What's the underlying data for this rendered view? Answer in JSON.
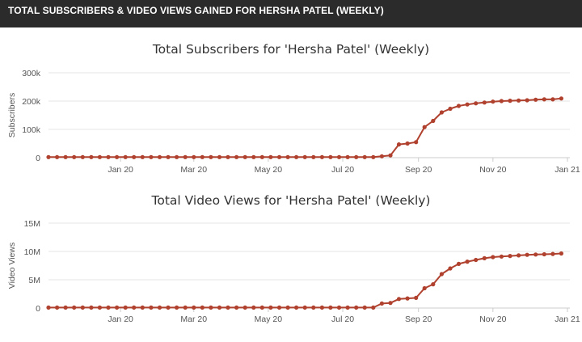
{
  "header": {
    "title": "TOTAL SUBSCRIBERS & VIDEO VIEWS GAINED FOR HERSHA PATEL (WEEKLY)"
  },
  "colors": {
    "header_bg": "#2b2b2b",
    "series": "#b0412e",
    "grid": "#e6e6e6"
  },
  "chart_data": [
    {
      "type": "line",
      "title": "Total Subscribers for 'Hersha Patel' (Weekly)",
      "ylabel": "Subscribers",
      "xlabel": "",
      "x_tick_labels": [
        "Jan 20",
        "Mar 20",
        "May 20",
        "Jul 20",
        "Sep 20",
        "Nov 20",
        "Jan 21"
      ],
      "x_range": [
        "2019-11-17",
        "2021-01-17"
      ],
      "y_ticks": [
        0,
        100000,
        200000,
        300000
      ],
      "y_tick_labels": [
        "0",
        "100k",
        "200k",
        "300k"
      ],
      "ylim": [
        0,
        300000
      ],
      "grid": true,
      "series": [
        {
          "x": [
            "2019-11-17",
            "2019-11-24",
            "2019-12-01",
            "2019-12-08",
            "2019-12-15",
            "2019-12-22",
            "2019-12-29",
            "2020-01-05",
            "2020-01-12",
            "2020-01-19",
            "2020-01-26",
            "2020-02-02",
            "2020-02-09",
            "2020-02-16",
            "2020-02-23",
            "2020-03-01",
            "2020-03-08",
            "2020-03-15",
            "2020-03-22",
            "2020-03-29",
            "2020-04-05",
            "2020-04-12",
            "2020-04-19",
            "2020-04-26",
            "2020-05-03",
            "2020-05-10",
            "2020-05-17",
            "2020-05-24",
            "2020-05-31",
            "2020-06-07",
            "2020-06-14",
            "2020-06-21",
            "2020-06-28",
            "2020-07-05",
            "2020-07-12",
            "2020-07-19",
            "2020-07-26",
            "2020-08-02",
            "2020-08-09",
            "2020-08-16",
            "2020-08-23",
            "2020-08-30",
            "2020-09-06",
            "2020-09-13",
            "2020-09-20",
            "2020-09-27",
            "2020-10-04",
            "2020-10-11",
            "2020-10-18",
            "2020-10-25",
            "2020-11-01",
            "2020-11-08",
            "2020-11-15",
            "2020-11-22",
            "2020-11-29",
            "2020-12-06",
            "2020-12-13",
            "2020-12-20",
            "2020-12-27",
            "2021-01-03",
            "2021-01-10"
          ],
          "values": [
            2000,
            2000,
            2000,
            2000,
            2000,
            2000,
            2000,
            2000,
            2000,
            2000,
            2000,
            2000,
            2000,
            2000,
            2000,
            2000,
            2000,
            2000,
            2000,
            2000,
            2000,
            2000,
            2000,
            2000,
            2000,
            2000,
            2000,
            2000,
            2000,
            2000,
            2000,
            2000,
            2000,
            2000,
            2000,
            2000,
            2000,
            2000,
            2000,
            5000,
            8000,
            47000,
            50000,
            55000,
            108000,
            130000,
            160000,
            173000,
            183000,
            188000,
            192000,
            195000,
            198000,
            200000,
            201000,
            202000,
            203000,
            205000,
            206000,
            206000,
            209000
          ]
        }
      ]
    },
    {
      "type": "line",
      "title": "Total Video Views for 'Hersha Patel' (Weekly)",
      "ylabel": "Video Views",
      "xlabel": "",
      "x_tick_labels": [
        "Jan 20",
        "Mar 20",
        "May 20",
        "Jul 20",
        "Sep 20",
        "Nov 20",
        "Jan 21"
      ],
      "x_range": [
        "2019-11-17",
        "2021-01-17"
      ],
      "y_ticks": [
        0,
        5000000,
        10000000,
        15000000
      ],
      "y_tick_labels": [
        "0",
        "5M",
        "10M",
        "15M"
      ],
      "ylim": [
        0,
        15000000
      ],
      "grid": true,
      "series": [
        {
          "x": [
            "2019-11-17",
            "2019-11-24",
            "2019-12-01",
            "2019-12-08",
            "2019-12-15",
            "2019-12-22",
            "2019-12-29",
            "2020-01-05",
            "2020-01-12",
            "2020-01-19",
            "2020-01-26",
            "2020-02-02",
            "2020-02-09",
            "2020-02-16",
            "2020-02-23",
            "2020-03-01",
            "2020-03-08",
            "2020-03-15",
            "2020-03-22",
            "2020-03-29",
            "2020-04-05",
            "2020-04-12",
            "2020-04-19",
            "2020-04-26",
            "2020-05-03",
            "2020-05-10",
            "2020-05-17",
            "2020-05-24",
            "2020-05-31",
            "2020-06-07",
            "2020-06-14",
            "2020-06-21",
            "2020-06-28",
            "2020-07-05",
            "2020-07-12",
            "2020-07-19",
            "2020-07-26",
            "2020-08-02",
            "2020-08-09",
            "2020-08-16",
            "2020-08-23",
            "2020-08-30",
            "2020-09-06",
            "2020-09-13",
            "2020-09-20",
            "2020-09-27",
            "2020-10-04",
            "2020-10-11",
            "2020-10-18",
            "2020-10-25",
            "2020-11-01",
            "2020-11-08",
            "2020-11-15",
            "2020-11-22",
            "2020-11-29",
            "2020-12-06",
            "2020-12-13",
            "2020-12-20",
            "2020-12-27",
            "2021-01-03",
            "2021-01-10"
          ],
          "values": [
            80000,
            80000,
            80000,
            80000,
            80000,
            80000,
            80000,
            80000,
            80000,
            80000,
            80000,
            80000,
            80000,
            80000,
            80000,
            80000,
            80000,
            80000,
            80000,
            80000,
            80000,
            80000,
            80000,
            80000,
            80000,
            80000,
            80000,
            80000,
            80000,
            80000,
            80000,
            80000,
            80000,
            80000,
            80000,
            80000,
            80000,
            80000,
            80000,
            800000,
            900000,
            1600000,
            1700000,
            1800000,
            3500000,
            4200000,
            6000000,
            7000000,
            7800000,
            8200000,
            8500000,
            8800000,
            9000000,
            9100000,
            9200000,
            9300000,
            9400000,
            9450000,
            9500000,
            9550000,
            9650000
          ]
        }
      ]
    }
  ]
}
